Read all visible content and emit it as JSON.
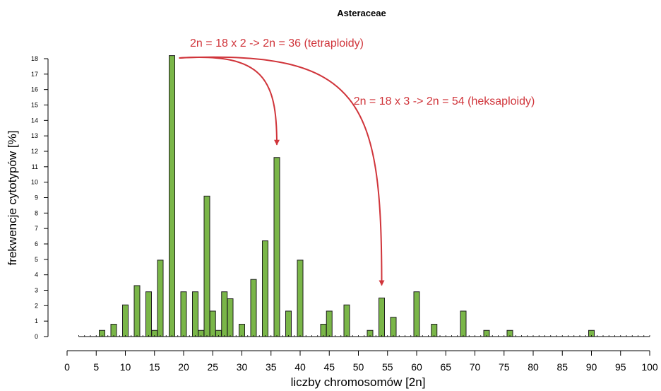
{
  "chart_data": {
    "type": "bar",
    "title": "Asteraceae",
    "xlabel": "liczby chromosomów [2n]",
    "ylabel": "frekwencje cytotypów [%]",
    "xlim": [
      0,
      100
    ],
    "ylim": [
      0,
      18
    ],
    "xticks": [
      0,
      5,
      10,
      15,
      20,
      25,
      30,
      35,
      40,
      45,
      50,
      55,
      60,
      65,
      70,
      75,
      80,
      85,
      90,
      95,
      100
    ],
    "yticks": [
      0,
      1,
      2,
      3,
      4,
      5,
      6,
      7,
      8,
      9,
      10,
      11,
      12,
      13,
      14,
      15,
      16,
      17,
      18
    ],
    "baseline_range": [
      2,
      100
    ],
    "x": [
      6,
      8,
      10,
      12,
      14,
      15,
      16,
      18,
      20,
      22,
      23,
      24,
      25,
      26,
      27,
      28,
      30,
      32,
      34,
      36,
      38,
      40,
      44,
      45,
      48,
      52,
      54,
      56,
      60,
      63,
      68,
      72,
      76,
      90
    ],
    "values": [
      0.4,
      0.8,
      2.05,
      3.3,
      2.9,
      0.4,
      4.95,
      18.2,
      2.9,
      2.9,
      0.4,
      9.1,
      1.65,
      0.4,
      2.9,
      2.45,
      0.8,
      3.7,
      6.2,
      11.6,
      1.65,
      4.95,
      0.8,
      1.65,
      2.05,
      0.4,
      2.5,
      1.25,
      2.9,
      0.8,
      1.65,
      0.4,
      0.4,
      0.4
    ],
    "grid": false,
    "legend": "none",
    "bar_color": "#7ab648",
    "annotations": [
      {
        "text": "2n = 18 x 2 -> 2n = 36 (tetraploidy)",
        "from_x": 18,
        "to_x": 36
      },
      {
        "text": "2n = 18 x 3 -> 2n = 54 (heksaploidy)",
        "from_x": 18,
        "to_x": 54
      }
    ],
    "annotation_color": "#d0343a"
  }
}
